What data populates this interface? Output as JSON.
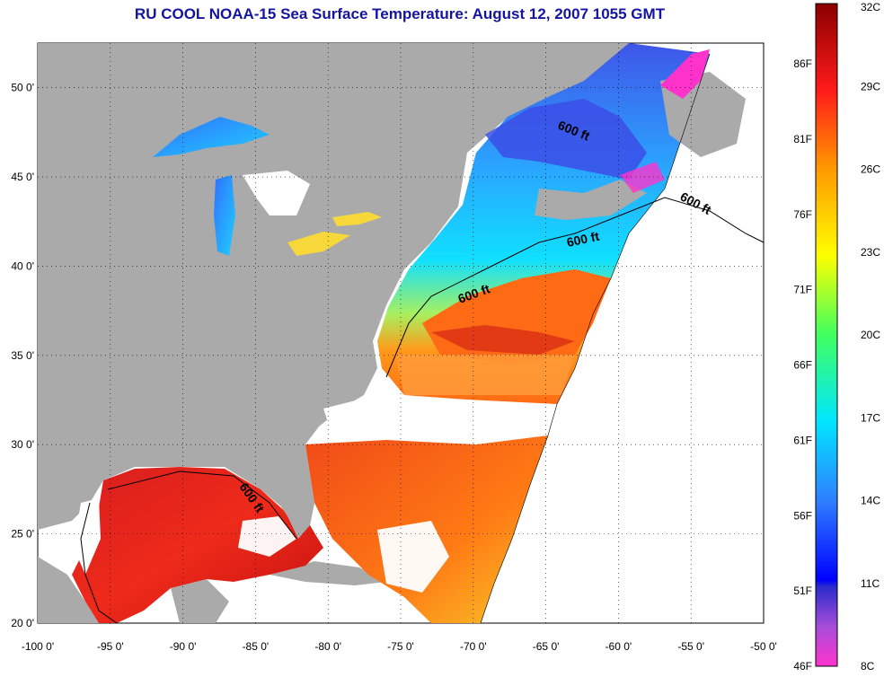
{
  "title": "RU COOL  NOAA-15  Sea Surface Temperature:  August 12, 2007 1055 GMT",
  "map": {
    "lon_ticks": [
      "-100 0'",
      "-95 0'",
      "-90 0'",
      "-85 0'",
      "-80 0'",
      "-75 0'",
      "-70 0'",
      "-65 0'",
      "-60 0'",
      "-55 0'",
      "-50 0'"
    ],
    "lat_ticks": [
      "50 0'",
      "45 0'",
      "40 0'",
      "35 0'",
      "30 0'",
      "25 0'",
      "20 0'"
    ],
    "lon_range": [
      -100,
      -50
    ],
    "lat_range": [
      20,
      52.5
    ],
    "contour_labels": [
      "600 ft",
      "600 ft",
      "600 ft",
      "600 ft",
      "600 ft"
    ],
    "colors": {
      "land": "#aaaaaa",
      "cloud_nodata": "#ffffff"
    }
  },
  "colorbar": {
    "celsius_ticks": [
      "32C",
      "29C",
      "26C",
      "23C",
      "20C",
      "17C",
      "14C",
      "11C",
      "8C"
    ],
    "fahrenheit_ticks": [
      "86F",
      "81F",
      "76F",
      "71F",
      "66F",
      "61F",
      "56F",
      "51F",
      "46F"
    ],
    "range_c": [
      8,
      32
    ],
    "range_f": [
      46,
      90
    ]
  }
}
